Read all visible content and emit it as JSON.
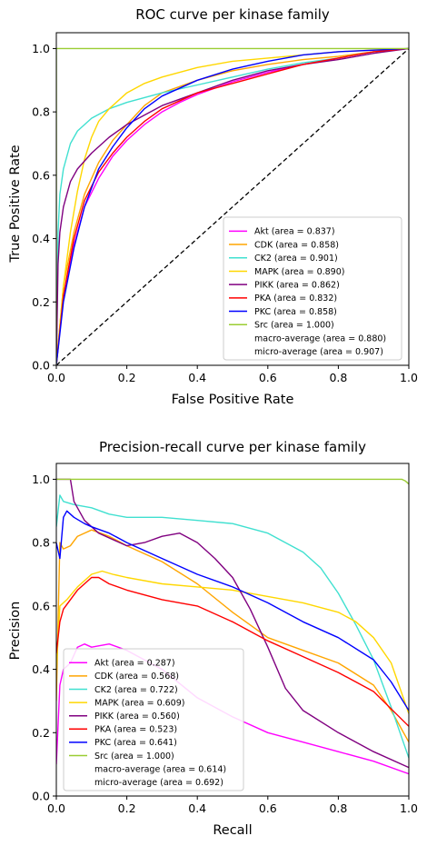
{
  "chart_data": [
    {
      "type": "line",
      "title": "ROC curve per kinase family",
      "xlabel": "False Positive Rate",
      "ylabel": "True Positive Rate",
      "xlim": [
        0,
        1
      ],
      "ylim": [
        0,
        1.05
      ],
      "xticks": [
        "0.0",
        "0.2",
        "0.4",
        "0.6",
        "0.8",
        "1.0"
      ],
      "yticks": [
        "0.0",
        "0.2",
        "0.4",
        "0.6",
        "0.8",
        "1.0"
      ],
      "legend_position": "lower-right",
      "diagonal": true,
      "series": [
        {
          "name": "Akt (area = 0.837)",
          "color": "#ff00ff",
          "x": [
            0,
            0.02,
            0.05,
            0.08,
            0.12,
            0.16,
            0.2,
            0.25,
            0.3,
            0.35,
            0.4,
            0.5,
            0.6,
            0.7,
            0.8,
            0.9,
            1.0
          ],
          "y": [
            0,
            0.22,
            0.38,
            0.5,
            0.59,
            0.66,
            0.71,
            0.76,
            0.8,
            0.83,
            0.855,
            0.895,
            0.925,
            0.95,
            0.97,
            0.99,
            1.0
          ]
        },
        {
          "name": "CDK (area = 0.858)",
          "color": "#ffa500",
          "x": [
            0,
            0.02,
            0.05,
            0.08,
            0.12,
            0.16,
            0.2,
            0.25,
            0.3,
            0.4,
            0.5,
            0.6,
            0.7,
            0.8,
            0.9,
            1.0
          ],
          "y": [
            0,
            0.25,
            0.42,
            0.54,
            0.64,
            0.71,
            0.76,
            0.82,
            0.86,
            0.9,
            0.93,
            0.95,
            0.965,
            0.975,
            0.99,
            1.0
          ]
        },
        {
          "name": "CK2 (area = 0.901)",
          "color": "#40e0d0",
          "x": [
            0,
            0.005,
            0.01,
            0.02,
            0.04,
            0.06,
            0.1,
            0.15,
            0.2,
            0.3,
            0.4,
            0.5,
            0.6,
            0.7,
            0.8,
            0.9,
            1.0
          ],
          "y": [
            0,
            0.42,
            0.54,
            0.62,
            0.7,
            0.74,
            0.78,
            0.81,
            0.83,
            0.86,
            0.885,
            0.91,
            0.935,
            0.955,
            0.97,
            0.99,
            1.0
          ]
        },
        {
          "name": "MAPK (area = 0.890)",
          "color": "#ffd700",
          "x": [
            0,
            0.02,
            0.04,
            0.06,
            0.08,
            0.1,
            0.12,
            0.15,
            0.2,
            0.25,
            0.3,
            0.4,
            0.5,
            0.6,
            0.8,
            1.0
          ],
          "y": [
            0,
            0.25,
            0.42,
            0.55,
            0.65,
            0.72,
            0.77,
            0.81,
            0.86,
            0.89,
            0.91,
            0.94,
            0.96,
            0.97,
            0.99,
            1.0
          ]
        },
        {
          "name": "PIKK (area = 0.862)",
          "color": "#800080",
          "x": [
            0,
            0.005,
            0.01,
            0.02,
            0.04,
            0.06,
            0.1,
            0.15,
            0.2,
            0.3,
            0.4,
            0.5,
            0.6,
            0.7,
            0.8,
            0.9,
            1.0
          ],
          "y": [
            0,
            0.32,
            0.42,
            0.5,
            0.58,
            0.62,
            0.67,
            0.72,
            0.76,
            0.82,
            0.86,
            0.9,
            0.93,
            0.95,
            0.965,
            0.985,
            1.0
          ]
        },
        {
          "name": "PKA (area = 0.832)",
          "color": "#ff0000",
          "x": [
            0,
            0.02,
            0.05,
            0.08,
            0.12,
            0.16,
            0.2,
            0.25,
            0.3,
            0.4,
            0.5,
            0.6,
            0.7,
            0.8,
            0.9,
            1.0
          ],
          "y": [
            0,
            0.22,
            0.4,
            0.52,
            0.61,
            0.67,
            0.72,
            0.77,
            0.81,
            0.86,
            0.89,
            0.92,
            0.95,
            0.97,
            0.99,
            1.0
          ]
        },
        {
          "name": "PKC (area = 0.858)",
          "color": "#0000ff",
          "x": [
            0,
            0.02,
            0.05,
            0.08,
            0.12,
            0.16,
            0.2,
            0.25,
            0.3,
            0.4,
            0.5,
            0.6,
            0.7,
            0.8,
            0.9,
            1.0
          ],
          "y": [
            0,
            0.2,
            0.37,
            0.5,
            0.62,
            0.69,
            0.75,
            0.81,
            0.85,
            0.9,
            0.935,
            0.96,
            0.98,
            0.99,
            0.995,
            1.0
          ]
        },
        {
          "name": "Src (area = 1.000)",
          "color": "#9acd32",
          "x": [
            0,
            0,
            1.0
          ],
          "y": [
            0,
            1.0,
            1.0
          ]
        },
        {
          "name": "macro-average (area = 0.880)",
          "color": "none",
          "x": [],
          "y": []
        },
        {
          "name": "micro-average (area = 0.907)",
          "color": "none",
          "x": [],
          "y": []
        }
      ]
    },
    {
      "type": "line",
      "title": "Precision-recall curve per kinase family",
      "xlabel": "Recall",
      "ylabel": "Precision",
      "xlim": [
        0,
        1
      ],
      "ylim": [
        0,
        1.05
      ],
      "xticks": [
        "0.0",
        "0.2",
        "0.4",
        "0.6",
        "0.8",
        "1.0"
      ],
      "yticks": [
        "0.0",
        "0.2",
        "0.4",
        "0.6",
        "0.8",
        "1.0"
      ],
      "legend_position": "lower-left",
      "diagonal": false,
      "series": [
        {
          "name": "Akt (area = 0.287)",
          "color": "#ff00ff",
          "x": [
            0,
            0.01,
            0.02,
            0.04,
            0.06,
            0.08,
            0.1,
            0.15,
            0.2,
            0.3,
            0.4,
            0.5,
            0.6,
            0.7,
            0.8,
            0.9,
            1.0
          ],
          "y": [
            0.1,
            0.35,
            0.4,
            0.42,
            0.47,
            0.48,
            0.47,
            0.48,
            0.46,
            0.4,
            0.31,
            0.25,
            0.2,
            0.17,
            0.14,
            0.11,
            0.07
          ]
        },
        {
          "name": "CDK (area = 0.568)",
          "color": "#ffa500",
          "x": [
            0,
            0.01,
            0.02,
            0.04,
            0.06,
            0.08,
            0.1,
            0.15,
            0.2,
            0.3,
            0.4,
            0.5,
            0.6,
            0.7,
            0.8,
            0.9,
            0.95,
            1.0
          ],
          "y": [
            0.3,
            0.8,
            0.78,
            0.79,
            0.82,
            0.83,
            0.84,
            0.82,
            0.79,
            0.74,
            0.67,
            0.58,
            0.5,
            0.46,
            0.42,
            0.35,
            0.27,
            0.17
          ]
        },
        {
          "name": "CK2 (area = 0.722)",
          "color": "#40e0d0",
          "x": [
            0,
            0.01,
            0.02,
            0.05,
            0.1,
            0.15,
            0.2,
            0.3,
            0.4,
            0.5,
            0.6,
            0.7,
            0.75,
            0.8,
            0.85,
            0.9,
            0.95,
            1.0
          ],
          "y": [
            0.85,
            0.95,
            0.93,
            0.92,
            0.91,
            0.89,
            0.88,
            0.88,
            0.87,
            0.86,
            0.83,
            0.77,
            0.72,
            0.64,
            0.54,
            0.43,
            0.28,
            0.12
          ]
        },
        {
          "name": "MAPK (area = 0.609)",
          "color": "#ffd700",
          "x": [
            0,
            0.01,
            0.03,
            0.06,
            0.1,
            0.13,
            0.16,
            0.2,
            0.3,
            0.4,
            0.5,
            0.6,
            0.7,
            0.8,
            0.85,
            0.9,
            0.95,
            1.0
          ],
          "y": [
            0.4,
            0.6,
            0.62,
            0.66,
            0.7,
            0.71,
            0.7,
            0.69,
            0.67,
            0.66,
            0.65,
            0.63,
            0.61,
            0.58,
            0.55,
            0.5,
            0.42,
            0.26
          ]
        },
        {
          "name": "PIKK (area = 0.560)",
          "color": "#800080",
          "x": [
            0,
            0.02,
            0.04,
            0.05,
            0.08,
            0.12,
            0.16,
            0.2,
            0.25,
            0.3,
            0.35,
            0.4,
            0.45,
            0.5,
            0.55,
            0.6,
            0.65,
            0.7,
            0.8,
            0.9,
            1.0
          ],
          "y": [
            1.0,
            1.0,
            1.0,
            0.93,
            0.87,
            0.83,
            0.81,
            0.79,
            0.8,
            0.82,
            0.83,
            0.8,
            0.75,
            0.69,
            0.59,
            0.47,
            0.34,
            0.27,
            0.2,
            0.14,
            0.09
          ]
        },
        {
          "name": "PKA (area = 0.523)",
          "color": "#ff0000",
          "x": [
            0,
            0.01,
            0.02,
            0.04,
            0.06,
            0.08,
            0.1,
            0.12,
            0.15,
            0.2,
            0.3,
            0.4,
            0.5,
            0.6,
            0.7,
            0.8,
            0.9,
            1.0
          ],
          "y": [
            0.45,
            0.55,
            0.59,
            0.62,
            0.65,
            0.67,
            0.69,
            0.69,
            0.67,
            0.65,
            0.62,
            0.6,
            0.55,
            0.49,
            0.44,
            0.39,
            0.33,
            0.22
          ]
        },
        {
          "name": "PKC (area = 0.641)",
          "color": "#0000ff",
          "x": [
            0,
            0.01,
            0.02,
            0.03,
            0.05,
            0.08,
            0.1,
            0.15,
            0.2,
            0.3,
            0.4,
            0.5,
            0.6,
            0.7,
            0.8,
            0.9,
            0.95,
            1.0
          ],
          "y": [
            0.8,
            0.75,
            0.88,
            0.9,
            0.88,
            0.86,
            0.85,
            0.83,
            0.8,
            0.75,
            0.7,
            0.66,
            0.61,
            0.55,
            0.5,
            0.43,
            0.36,
            0.27
          ]
        },
        {
          "name": "Src (area = 1.000)",
          "color": "#9acd32",
          "x": [
            0,
            0.98,
            0.99,
            1.0
          ],
          "y": [
            1.0,
            1.0,
            0.995,
            0.985
          ]
        },
        {
          "name": "macro-average (area = 0.614)",
          "color": "none",
          "x": [],
          "y": []
        },
        {
          "name": "micro-average (area = 0.692)",
          "color": "none",
          "x": [],
          "y": []
        }
      ]
    }
  ]
}
